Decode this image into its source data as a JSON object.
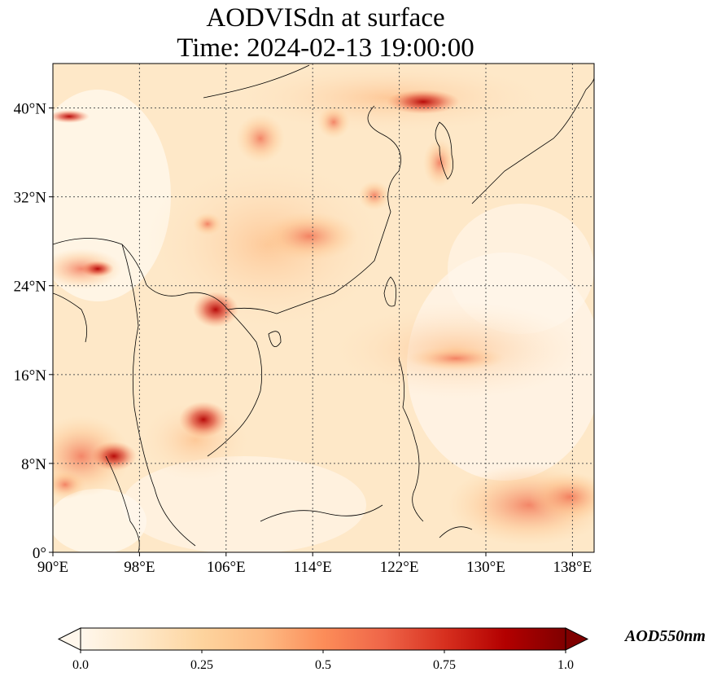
{
  "title": {
    "line1": "AODVISdn at surface",
    "line2": "Time: 2024-02-13 19:00:00"
  },
  "map": {
    "lon_range": [
      90,
      140
    ],
    "lat_range": [
      0,
      44
    ],
    "lon_ticks": [
      "90°E",
      "98°E",
      "106°E",
      "114°E",
      "122°E",
      "130°E",
      "138°E"
    ],
    "lat_ticks": [
      "0°",
      "8°N",
      "16°N",
      "24°N",
      "32°N",
      "40°N"
    ],
    "lon_tick_values": [
      90,
      98,
      106,
      114,
      122,
      130,
      138
    ],
    "lat_tick_values": [
      0,
      8,
      16,
      24,
      32,
      40
    ],
    "gridlines": true
  },
  "colorbar": {
    "label": "AOD550nm",
    "ticks": [
      "0.0",
      "0.25",
      "0.5",
      "0.75",
      "1.0"
    ],
    "tick_values": [
      0.0,
      0.25,
      0.5,
      0.75,
      1.0
    ],
    "range": [
      0.0,
      1.0
    ],
    "extend": "both",
    "colormap": "OrRd",
    "colors": [
      "#fff7ec",
      "#fee8c8",
      "#fdd49e",
      "#fdbb84",
      "#fc8d59",
      "#ef6548",
      "#d7301f",
      "#b30000",
      "#7f0000"
    ]
  }
}
